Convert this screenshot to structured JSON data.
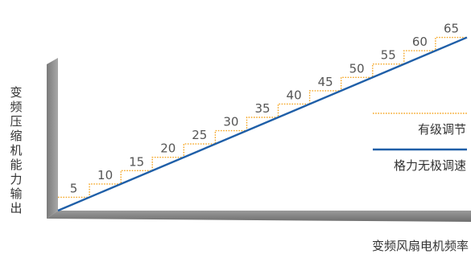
{
  "chart_data": {
    "type": "line",
    "xlabel": "变频风扇电机频率",
    "ylabel": "变频压缩机能力输出",
    "step_values": [
      5,
      10,
      15,
      20,
      25,
      30,
      35,
      40,
      45,
      50,
      55,
      60,
      65
    ],
    "ylim": [
      0,
      70
    ],
    "grid": false,
    "legend_position": "right",
    "series": [
      {
        "name": "有级调节",
        "style": "stepped-dotted",
        "color": "#f5a623"
      },
      {
        "name": "格力无极调速",
        "style": "solid-line",
        "color": "#1f5fa8"
      }
    ],
    "axis_color": "#8a8a8a"
  }
}
